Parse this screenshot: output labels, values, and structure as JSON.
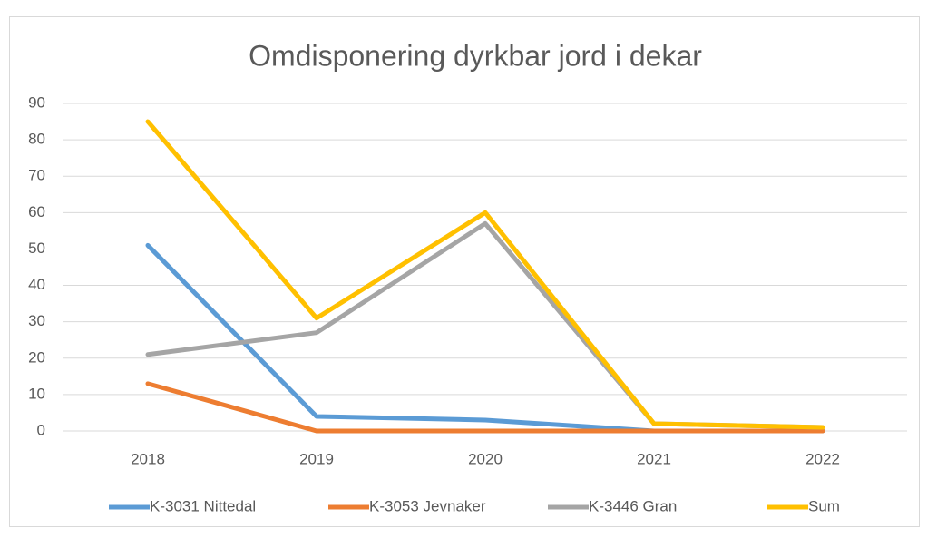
{
  "chart_data": {
    "type": "line",
    "title": "Omdisponering dyrkbar jord i dekar",
    "categories": [
      "2018",
      "2019",
      "2020",
      "2021",
      "2022"
    ],
    "series": [
      {
        "name": "K-3031 Nittedal",
        "color": "#5b9bd5",
        "values": [
          51,
          4,
          3,
          0,
          0
        ]
      },
      {
        "name": "K-3053 Jevnaker",
        "color": "#ed7d31",
        "values": [
          13,
          0,
          0,
          0,
          0
        ]
      },
      {
        "name": "K-3446 Gran",
        "color": "#a5a5a5",
        "values": [
          21,
          27,
          57,
          2,
          1
        ]
      },
      {
        "name": "Sum",
        "color": "#ffc000",
        "values": [
          85,
          31,
          60,
          2,
          1
        ]
      }
    ],
    "ylim": [
      0,
      90
    ],
    "yticks": [
      0,
      10,
      20,
      30,
      40,
      50,
      60,
      70,
      80,
      90
    ],
    "grid": true,
    "legend": "bottom"
  }
}
